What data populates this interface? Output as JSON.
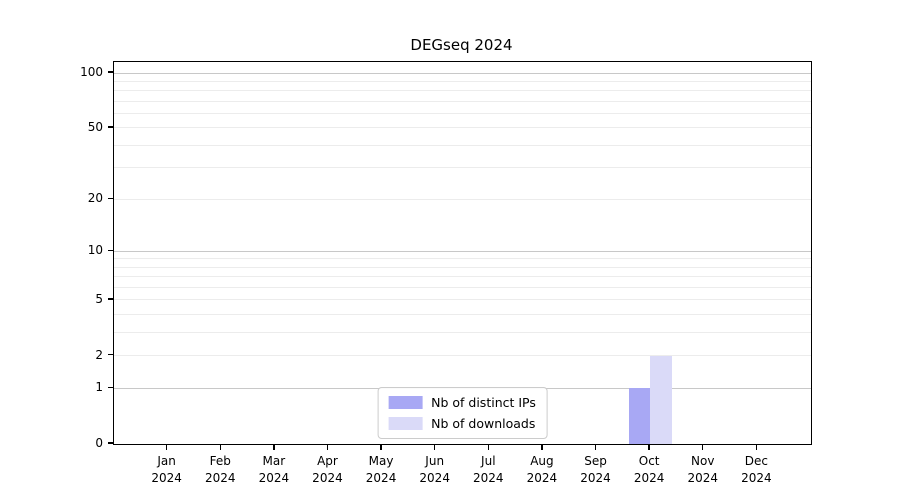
{
  "chart_data": {
    "type": "bar",
    "title": "DEGseq 2024",
    "year": "2024",
    "months": [
      "Jan",
      "Feb",
      "Mar",
      "Apr",
      "May",
      "Jun",
      "Jul",
      "Aug",
      "Sep",
      "Oct",
      "Nov",
      "Dec"
    ],
    "categories": [
      "Jan 2024",
      "Feb 2024",
      "Mar 2024",
      "Apr 2024",
      "May 2024",
      "Jun 2024",
      "Jul 2024",
      "Aug 2024",
      "Sep 2024",
      "Oct 2024",
      "Nov 2024",
      "Dec 2024"
    ],
    "series": [
      {
        "name": "Nb of distinct IPs",
        "color": "#a8a8f4",
        "values": [
          0,
          0,
          0,
          0,
          0,
          0,
          0,
          0,
          0,
          1,
          0,
          0
        ]
      },
      {
        "name": "Nb of downloads",
        "color": "#dadaf8",
        "values": [
          0,
          0,
          0,
          0,
          0,
          0,
          0,
          0,
          0,
          2,
          0,
          0
        ]
      }
    ],
    "yscale": "log1p",
    "ylim": [
      0,
      115
    ],
    "yticks": [
      0,
      1,
      2,
      5,
      10,
      20,
      50,
      100
    ],
    "gridlines": {
      "major": [
        1,
        10,
        100
      ],
      "minor": [
        2,
        3,
        4,
        5,
        6,
        7,
        8,
        9,
        20,
        30,
        40,
        50,
        60,
        70,
        80,
        90
      ],
      "major_color": "#c8c8c8",
      "minor_color": "#ececec"
    },
    "legend_position": "lower center",
    "axis_color": "#000000",
    "background": "#ffffff"
  }
}
